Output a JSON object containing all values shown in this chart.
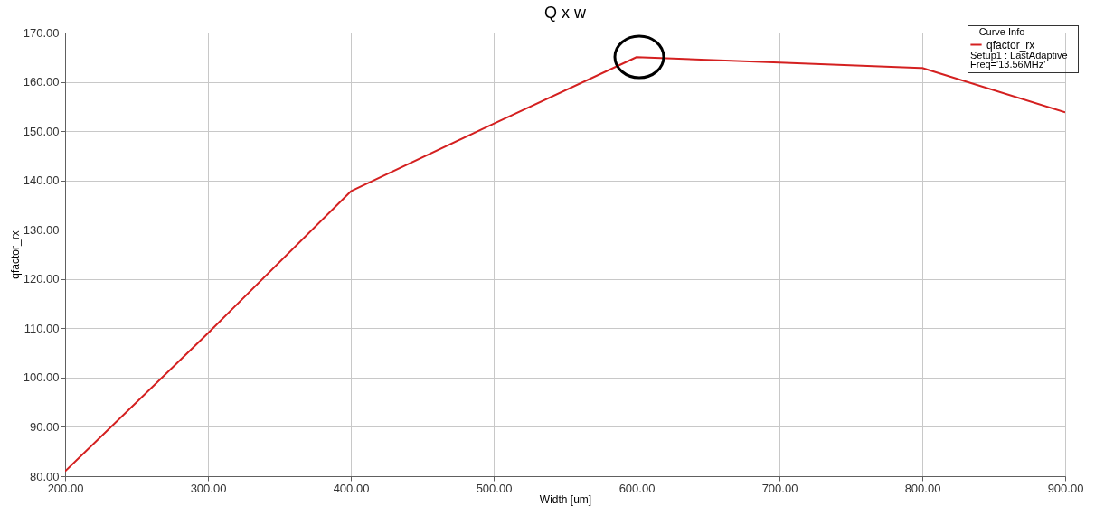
{
  "chart_data": {
    "type": "line",
    "title": "Q x w",
    "xlabel": "Width [um]",
    "ylabel": "qfactor_rx",
    "legend_title": "Curve Info",
    "legend": "top right",
    "grid": true,
    "marker": "none",
    "line_style": "solid",
    "x": [
      200,
      300,
      400,
      500,
      600,
      700,
      800,
      900
    ],
    "series": [
      {
        "name": "qfactor_rx",
        "color": "#d42020",
        "values": [
          81,
          109,
          137.8,
          151.5,
          165,
          163.9,
          162.8,
          153.8
        ]
      }
    ],
    "xlim": [
      200,
      900
    ],
    "xticks": [
      {
        "value": 200,
        "label": "200.00"
      },
      {
        "value": 300,
        "label": "300.00"
      },
      {
        "value": 400,
        "label": "400.00"
      },
      {
        "value": 500,
        "label": "500.00"
      },
      {
        "value": 600,
        "label": "600.00"
      },
      {
        "value": 700,
        "label": "700.00"
      },
      {
        "value": 800,
        "label": "800.00"
      },
      {
        "value": 900,
        "label": "900.00"
      }
    ],
    "ylim": [
      80,
      170
    ],
    "yticks": [
      {
        "value": 80,
        "label": "80.00"
      },
      {
        "value": 90,
        "label": "90.00"
      },
      {
        "value": 100,
        "label": "100.00"
      },
      {
        "value": 110,
        "label": "110.00"
      },
      {
        "value": 120,
        "label": "120.00"
      },
      {
        "value": 130,
        "label": "130.00"
      },
      {
        "value": 140,
        "label": "140.00"
      },
      {
        "value": 150,
        "label": "150.00"
      },
      {
        "value": 160,
        "label": "160.00"
      },
      {
        "value": 170,
        "label": "170.00"
      }
    ],
    "annotations": [
      "Setup1 : LastAdaptive",
      "Freq='13.56MHz'"
    ]
  }
}
